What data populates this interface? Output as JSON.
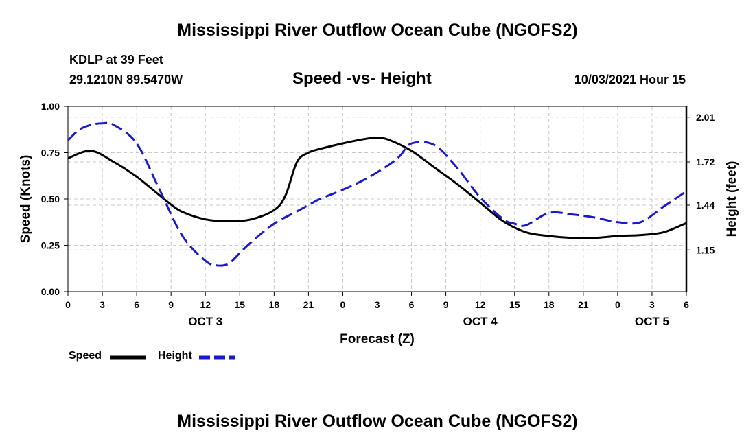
{
  "header": {
    "title_top": "Mississippi River Outflow Ocean Cube (NGOFS2)",
    "station": "KDLP at 39 Feet",
    "coords": "29.1210N  89.5470W",
    "subtitle": "Speed -vs- Height",
    "datetime": "10/03/2021 Hour 15"
  },
  "footer": {
    "title_bottom": "Mississippi River Outflow Ocean Cube (NGOFS2)"
  },
  "legend": {
    "speed_label": "Speed",
    "height_label": "Height"
  },
  "colors": {
    "speed": "#000000",
    "height": "#1a1acc",
    "grid": "#c8c8c8"
  },
  "chart_data": {
    "type": "line",
    "title": "Speed -vs- Height",
    "xlabel": "Forecast (Z)",
    "ylabel": "Speed (Knots)",
    "y2label": "Height (feet)",
    "xlim": [
      0,
      54
    ],
    "ylim": [
      0,
      1.0
    ],
    "y2lim": [
      0.88,
      2.08
    ],
    "x_ticks": [
      0,
      3,
      6,
      9,
      12,
      15,
      18,
      21,
      24,
      27,
      30,
      33,
      36,
      39,
      42,
      45,
      48,
      51,
      54
    ],
    "x_tick_labels": [
      "0",
      "3",
      "6",
      "9",
      "12",
      "15",
      "18",
      "21",
      "0",
      "3",
      "6",
      "9",
      "12",
      "15",
      "18",
      "21",
      "0",
      "3",
      "6"
    ],
    "y_ticks": [
      0,
      0.25,
      0.5,
      0.75,
      1.0
    ],
    "y_tick_labels": [
      "0.00",
      "0.25",
      "0.50",
      "0.75",
      "1.00"
    ],
    "y2_ticks": [
      1.15,
      1.44,
      1.72,
      2.01
    ],
    "y2_tick_labels": [
      "1.15",
      "1.44",
      "1.72",
      "2.01"
    ],
    "day_labels": [
      {
        "x": 12,
        "label": "OCT 3"
      },
      {
        "x": 36,
        "label": "OCT 4"
      },
      {
        "x": 51,
        "label": "OCT 5"
      }
    ],
    "grid": true,
    "series": [
      {
        "name": "Speed",
        "axis": "left",
        "style": "solid",
        "x": [
          0,
          2,
          4,
          6,
          8,
          9,
          10,
          12,
          14,
          16,
          18,
          19,
          20,
          21,
          22,
          24,
          26,
          27,
          28,
          30,
          32,
          34,
          36,
          38,
          40,
          42,
          44,
          46,
          48,
          50,
          52,
          54
        ],
        "y": [
          0.72,
          0.76,
          0.7,
          0.62,
          0.52,
          0.47,
          0.43,
          0.39,
          0.38,
          0.39,
          0.44,
          0.52,
          0.7,
          0.75,
          0.77,
          0.8,
          0.825,
          0.83,
          0.82,
          0.76,
          0.67,
          0.58,
          0.48,
          0.38,
          0.32,
          0.3,
          0.29,
          0.29,
          0.3,
          0.305,
          0.32,
          0.37
        ]
      },
      {
        "name": "Height",
        "axis": "right",
        "style": "dashed",
        "x": [
          0,
          1,
          2,
          3,
          4,
          6,
          8,
          10,
          12,
          13,
          14,
          15,
          16,
          18,
          20,
          21,
          22,
          24,
          26,
          28,
          29,
          30,
          32,
          34,
          36,
          38,
          39,
          40,
          42,
          44,
          46,
          48,
          50,
          52,
          54
        ],
        "y": [
          1.86,
          1.93,
          1.96,
          1.97,
          1.96,
          1.84,
          1.54,
          1.24,
          1.08,
          1.05,
          1.06,
          1.13,
          1.2,
          1.32,
          1.4,
          1.44,
          1.48,
          1.54,
          1.61,
          1.7,
          1.76,
          1.84,
          1.83,
          1.68,
          1.49,
          1.35,
          1.32,
          1.31,
          1.39,
          1.38,
          1.36,
          1.33,
          1.33,
          1.43,
          1.53
        ]
      }
    ]
  }
}
